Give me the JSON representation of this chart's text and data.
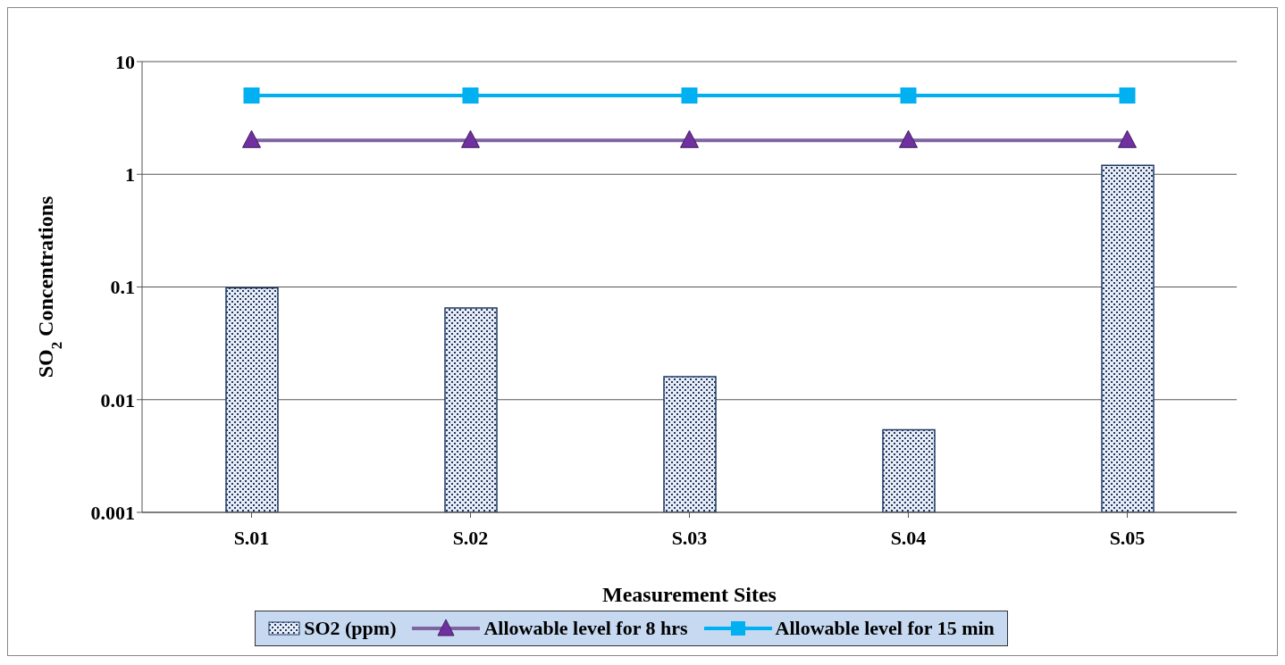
{
  "chart_data": {
    "type": "bar",
    "xlabel": "Measurement Sites",
    "ylabel": "SO$_{2}$ Concentrations",
    "categories": [
      "S.01",
      "S.02",
      "S.03",
      "S.04",
      "S.05"
    ],
    "log": "y",
    "ylim": [
      0.001,
      10
    ],
    "yticks": [
      0.001,
      0.01,
      0.1,
      1,
      10
    ],
    "grid": "y",
    "legend": "bottom",
    "series": [
      {
        "name": "SO2 (ppm)",
        "color": "#1f3864",
        "values": [
          0.098,
          0.065,
          0.016,
          0.0054,
          1.2
        ]
      },
      {
        "name": "Allowable level for 8 hrs",
        "type": "line",
        "color": "#8064a2",
        "marker": "triangle",
        "values": [
          2,
          2,
          2,
          2,
          2
        ]
      },
      {
        "name": "Allowable level for 15 min",
        "type": "line",
        "color": "#00b0f0",
        "marker": "square",
        "values": [
          5,
          5,
          5,
          5,
          5
        ]
      }
    ]
  }
}
